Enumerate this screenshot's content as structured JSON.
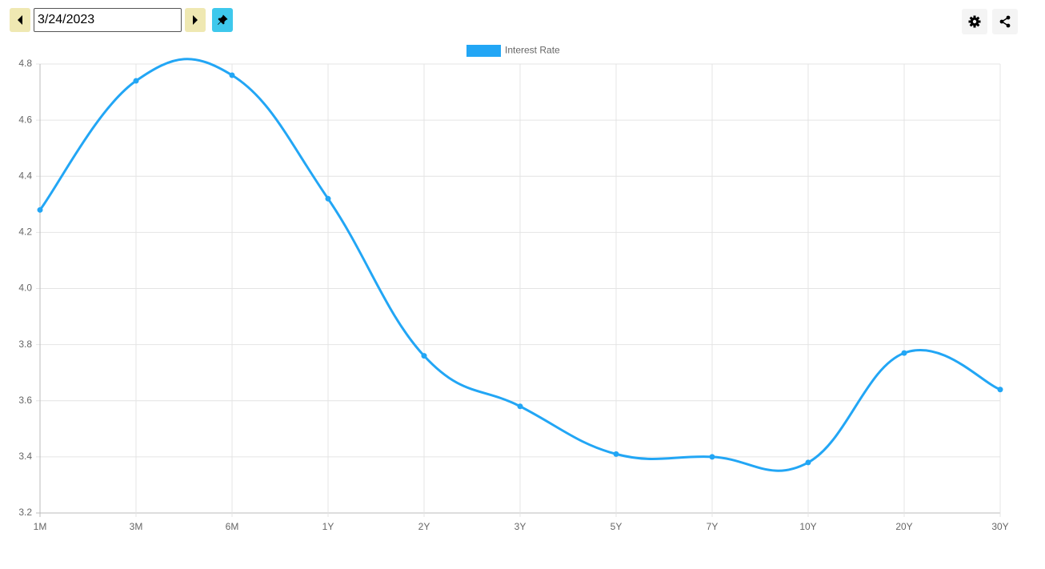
{
  "toolbar": {
    "date": "3/24/2023"
  },
  "chart_data": {
    "type": "line",
    "categories": [
      "1M",
      "3M",
      "6M",
      "1Y",
      "2Y",
      "3Y",
      "5Y",
      "7Y",
      "10Y",
      "20Y",
      "30Y"
    ],
    "series": [
      {
        "name": "Interest Rate",
        "color": "#22a6f5",
        "values": [
          4.28,
          4.74,
          4.76,
          4.32,
          3.76,
          3.58,
          3.41,
          3.4,
          3.38,
          3.77,
          3.64
        ]
      }
    ],
    "ylim": [
      3.2,
      4.8
    ],
    "yticks": [
      3.2,
      3.4,
      3.6,
      3.8,
      {
        "value": 4,
        "label": "4.0"
      },
      4.2,
      4.4,
      4.6,
      4.8
    ],
    "grid": true,
    "legend": "top"
  }
}
